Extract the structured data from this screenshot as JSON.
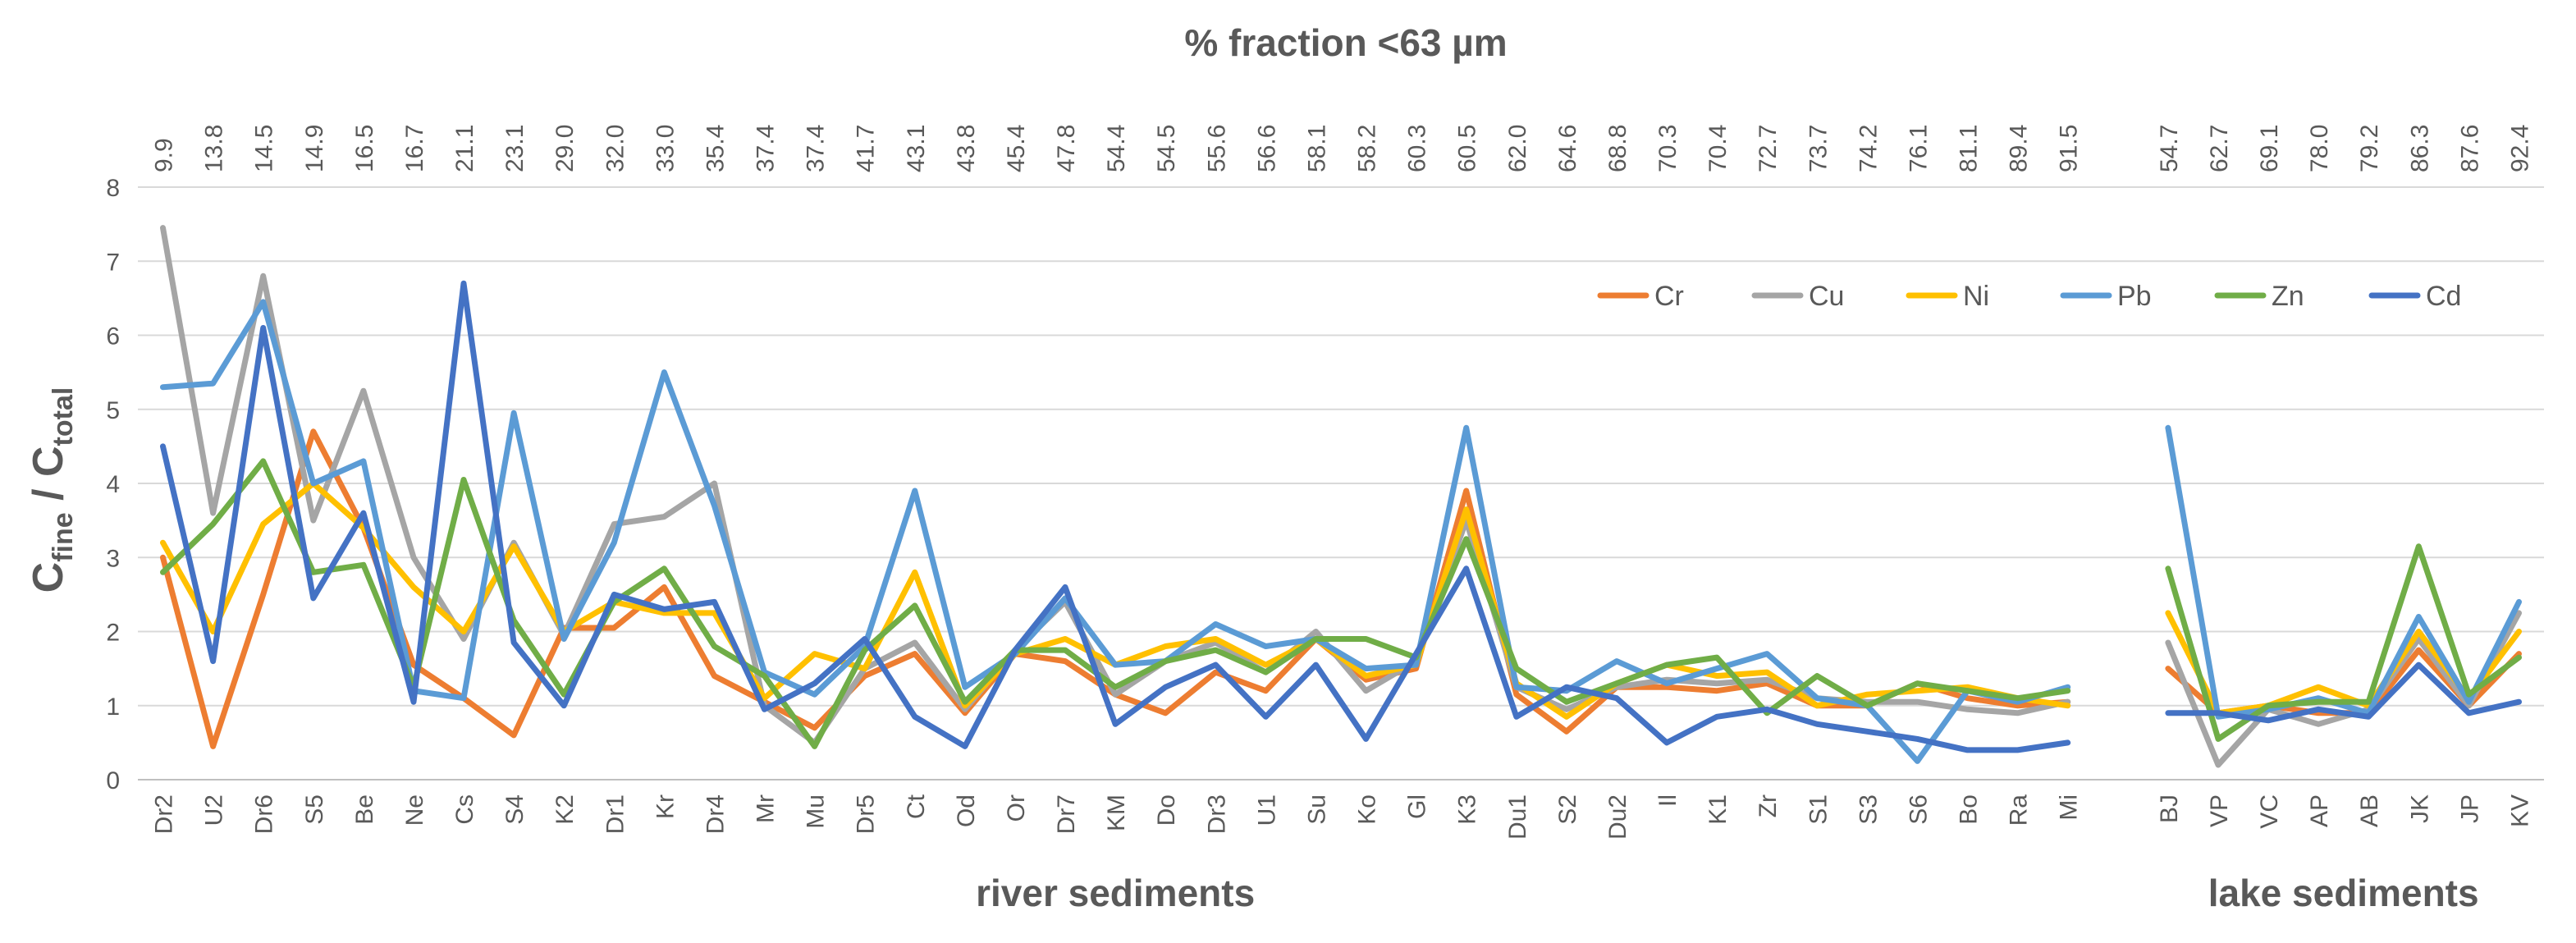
{
  "chart_data": {
    "type": "line",
    "title": "% fraction <63 µm",
    "ylabel": {
      "main": "C",
      "sub_num": "fine",
      "sep": " / C",
      "sub_den": "total"
    },
    "ylim": [
      0,
      8
    ],
    "yticks": [
      "0",
      "1",
      "2",
      "3",
      "4",
      "5",
      "6",
      "7",
      "8"
    ],
    "grid": true,
    "legend_position": "top-right",
    "groups": [
      {
        "label": "river sediments",
        "start": 0,
        "count": 39
      },
      {
        "label": "lake sediments",
        "start": 40,
        "count": 8
      }
    ],
    "categories": [
      "Dr2",
      "U2",
      "Dr6",
      "S5",
      "Be",
      "Ne",
      "Cs",
      "S4",
      "K2",
      "Dr1",
      "Kr",
      "Dr4",
      "Mr",
      "Mu",
      "Dr5",
      "Ct",
      "Od",
      "Or",
      "Dr7",
      "KM",
      "Do",
      "Dr3",
      "U1",
      "Su",
      "Ko",
      "Gl",
      "K3",
      "Du1",
      "S2",
      "Du2",
      "Il",
      "K1",
      "Zr",
      "S1",
      "S3",
      "S6",
      "Bo",
      "Ra",
      "Mi",
      "",
      "BJ",
      "VP",
      "VC",
      "AP",
      "AB",
      "JK",
      "JP",
      "KV"
    ],
    "fractions": [
      "9.9",
      "13.8",
      "14.5",
      "14.9",
      "16.5",
      "16.7",
      "21.1",
      "23.1",
      "29.0",
      "32.0",
      "33.0",
      "35.4",
      "37.4",
      "37.4",
      "41.7",
      "43.1",
      "43.8",
      "45.4",
      "47.8",
      "54.4",
      "54.5",
      "55.6",
      "56.6",
      "58.1",
      "58.2",
      "60.3",
      "60.5",
      "62.0",
      "64.6",
      "68.8",
      "70.3",
      "70.4",
      "72.7",
      "73.7",
      "74.2",
      "76.1",
      "81.1",
      "89.4",
      "91.5",
      "",
      "54.7",
      "62.7",
      "69.1",
      "78.0",
      "79.2",
      "86.3",
      "87.6",
      "92.4"
    ],
    "series": [
      {
        "name": "Cr",
        "color": "#ED7D31",
        "values": [
          3.0,
          0.45,
          2.5,
          4.7,
          3.4,
          1.55,
          1.1,
          0.6,
          2.05,
          2.05,
          2.6,
          1.4,
          1.05,
          0.7,
          1.4,
          1.7,
          0.9,
          1.7,
          1.6,
          1.15,
          0.9,
          1.45,
          1.2,
          1.9,
          1.35,
          1.5,
          3.9,
          1.15,
          0.65,
          1.25,
          1.25,
          1.2,
          1.3,
          1.0,
          1.0,
          1.3,
          1.1,
          1.0,
          1.05,
          null,
          1.5,
          0.9,
          1.0,
          0.9,
          0.9,
          1.75,
          1.0,
          1.7
        ]
      },
      {
        "name": "Cu",
        "color": "#A5A5A5",
        "values": [
          7.45,
          3.6,
          6.8,
          3.5,
          5.25,
          3.0,
          1.9,
          3.2,
          1.95,
          3.45,
          3.55,
          4.0,
          1.0,
          0.5,
          1.5,
          1.85,
          0.95,
          1.75,
          2.4,
          1.15,
          1.6,
          1.85,
          1.45,
          2.0,
          1.2,
          1.6,
          3.5,
          1.25,
          0.95,
          1.25,
          1.35,
          1.3,
          1.35,
          1.1,
          1.05,
          1.05,
          0.95,
          0.9,
          1.05,
          null,
          1.85,
          0.2,
          0.95,
          0.75,
          0.95,
          1.9,
          1.0,
          2.25
        ]
      },
      {
        "name": "Ni",
        "color": "#FFC000",
        "values": [
          3.2,
          2.0,
          3.45,
          4.0,
          3.4,
          2.6,
          2.0,
          3.15,
          2.0,
          2.4,
          2.25,
          2.25,
          1.1,
          1.7,
          1.5,
          2.8,
          1.0,
          1.7,
          1.9,
          1.55,
          1.8,
          1.9,
          1.55,
          1.9,
          1.4,
          1.55,
          3.65,
          1.3,
          0.85,
          1.3,
          1.55,
          1.4,
          1.45,
          1.0,
          1.15,
          1.2,
          1.25,
          1.1,
          1.0,
          null,
          2.25,
          0.9,
          1.0,
          1.25,
          1.0,
          2.0,
          1.1,
          2.0
        ]
      },
      {
        "name": "Pb",
        "color": "#5B9BD5",
        "values": [
          5.3,
          5.35,
          6.45,
          4.0,
          4.3,
          1.2,
          1.1,
          4.95,
          1.9,
          3.2,
          5.5,
          3.7,
          1.45,
          1.15,
          1.8,
          3.9,
          1.25,
          1.7,
          2.45,
          1.55,
          1.6,
          2.1,
          1.8,
          1.9,
          1.5,
          1.55,
          4.75,
          1.25,
          1.2,
          1.6,
          1.3,
          1.5,
          1.7,
          1.1,
          1.0,
          0.25,
          1.2,
          1.05,
          1.25,
          null,
          4.75,
          0.85,
          0.95,
          1.1,
          0.9,
          2.2,
          1.05,
          2.4
        ]
      },
      {
        "name": "Zn",
        "color": "#70AD47",
        "values": [
          2.8,
          3.45,
          4.3,
          2.8,
          2.9,
          1.25,
          4.05,
          2.15,
          1.15,
          2.4,
          2.85,
          1.8,
          1.4,
          0.45,
          1.75,
          2.35,
          1.05,
          1.75,
          1.75,
          1.25,
          1.6,
          1.75,
          1.45,
          1.9,
          1.9,
          1.65,
          3.25,
          1.5,
          1.05,
          1.3,
          1.55,
          1.65,
          0.9,
          1.4,
          1.0,
          1.3,
          1.2,
          1.1,
          1.2,
          null,
          2.85,
          0.55,
          1.0,
          1.05,
          1.05,
          3.15,
          1.15,
          1.65
        ]
      },
      {
        "name": "Cd",
        "color": "#4472C4",
        "values": [
          4.5,
          1.6,
          6.1,
          2.45,
          3.6,
          1.05,
          6.7,
          1.85,
          1.0,
          2.5,
          2.3,
          2.4,
          0.95,
          1.3,
          1.9,
          0.85,
          0.45,
          1.75,
          2.6,
          0.75,
          1.25,
          1.55,
          0.85,
          1.55,
          0.55,
          1.7,
          2.85,
          0.85,
          1.25,
          1.1,
          0.5,
          0.85,
          0.95,
          0.75,
          0.65,
          0.55,
          0.4,
          0.4,
          0.5,
          null,
          0.9,
          0.9,
          0.8,
          0.95,
          0.85,
          1.55,
          0.9,
          1.05
        ]
      }
    ]
  }
}
